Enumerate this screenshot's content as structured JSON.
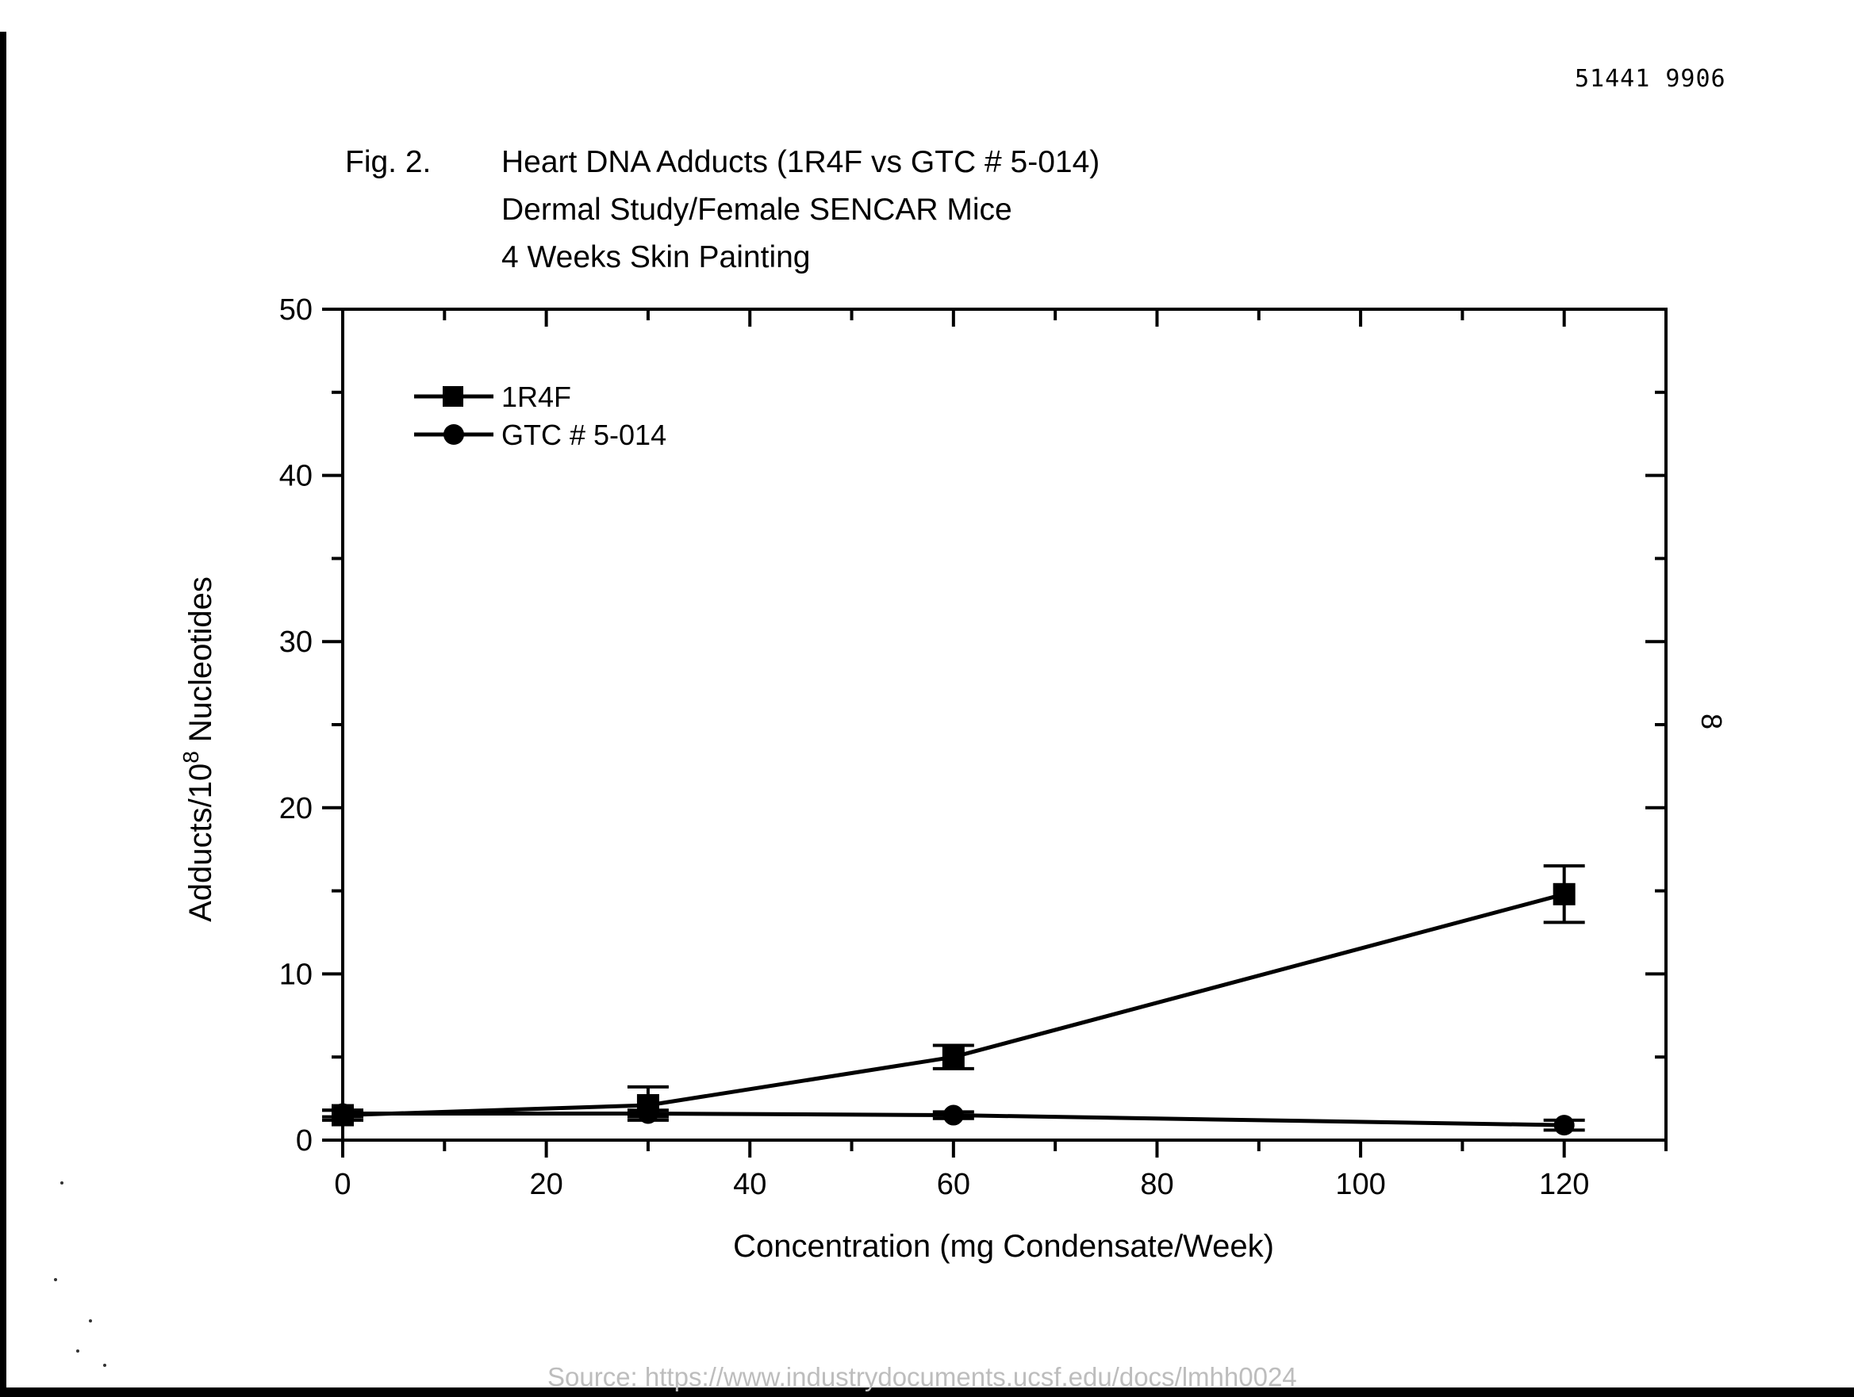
{
  "document": {
    "doc_number": "51441 9906",
    "page_number": "8",
    "figure_label": "Fig. 2.",
    "title_lines": [
      "Heart DNA Adducts (1R4F vs GTC # 5-014)",
      "Dermal Study/Female SENCAR Mice",
      "4 Weeks Skin Painting"
    ],
    "source": "Source: https://www.industrydocuments.ucsf.edu/docs/lmhh0024"
  },
  "chart_data": {
    "type": "line",
    "xlabel": "Concentration (mg Condensate/Week)",
    "ylabel_parts": [
      "Adducts/10",
      "8",
      " Nucleotides"
    ],
    "xlim": [
      0,
      130
    ],
    "ylim": [
      0,
      50
    ],
    "x_ticks": [
      0,
      20,
      40,
      60,
      80,
      100,
      120
    ],
    "y_ticks": [
      0,
      10,
      20,
      30,
      40,
      50
    ],
    "grid": false,
    "legend_position": "top-left",
    "x": [
      0,
      30,
      60,
      120
    ],
    "series": [
      {
        "name": "1R4F",
        "marker": "square",
        "values": [
          1.5,
          2.1,
          5.0,
          14.8
        ],
        "error_low": [
          1.2,
          1.2,
          4.3,
          13.1
        ],
        "error_high": [
          1.8,
          3.2,
          5.7,
          16.5
        ]
      },
      {
        "name": "GTC # 5-014",
        "marker": "circle",
        "values": [
          1.6,
          1.6,
          1.5,
          0.9
        ],
        "error_low": [
          1.4,
          1.4,
          1.3,
          0.6
        ],
        "error_high": [
          1.8,
          1.8,
          1.7,
          1.2
        ]
      }
    ]
  }
}
